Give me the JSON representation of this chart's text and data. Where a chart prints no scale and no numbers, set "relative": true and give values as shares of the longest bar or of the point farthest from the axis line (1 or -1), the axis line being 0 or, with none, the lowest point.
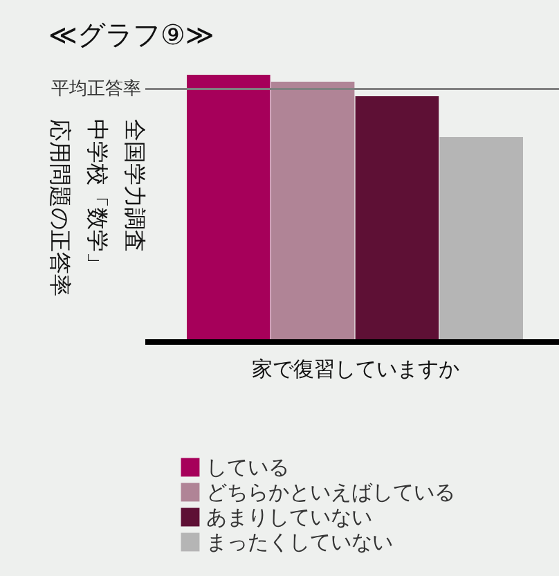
{
  "chart_data": {
    "type": "bar",
    "title": "≪グラフ⑨≫",
    "xlabel": "家で復習していますか",
    "annotations": [
      "全国学力調査",
      "中学校「数学」",
      "応用問題の正答率"
    ],
    "relative": true,
    "categories": [
      null
    ],
    "series": [
      {
        "name": "している",
        "color": "#a6005a",
        "values": [
          1.0
        ]
      },
      {
        "name": "どちらかといえばしている",
        "color": "#b08496",
        "values": [
          0.974
        ]
      },
      {
        "name": "あまりしていない",
        "color": "#5e1035",
        "values": [
          0.92
        ]
      },
      {
        "name": "まったくしていない",
        "color": "#b5b5b5",
        "values": [
          0.767
        ]
      }
    ],
    "ref_lines": [
      {
        "axis": "y",
        "value": 0.947,
        "label": "平均正答率",
        "color": "#808080"
      }
    ],
    "legend": "bottom"
  }
}
